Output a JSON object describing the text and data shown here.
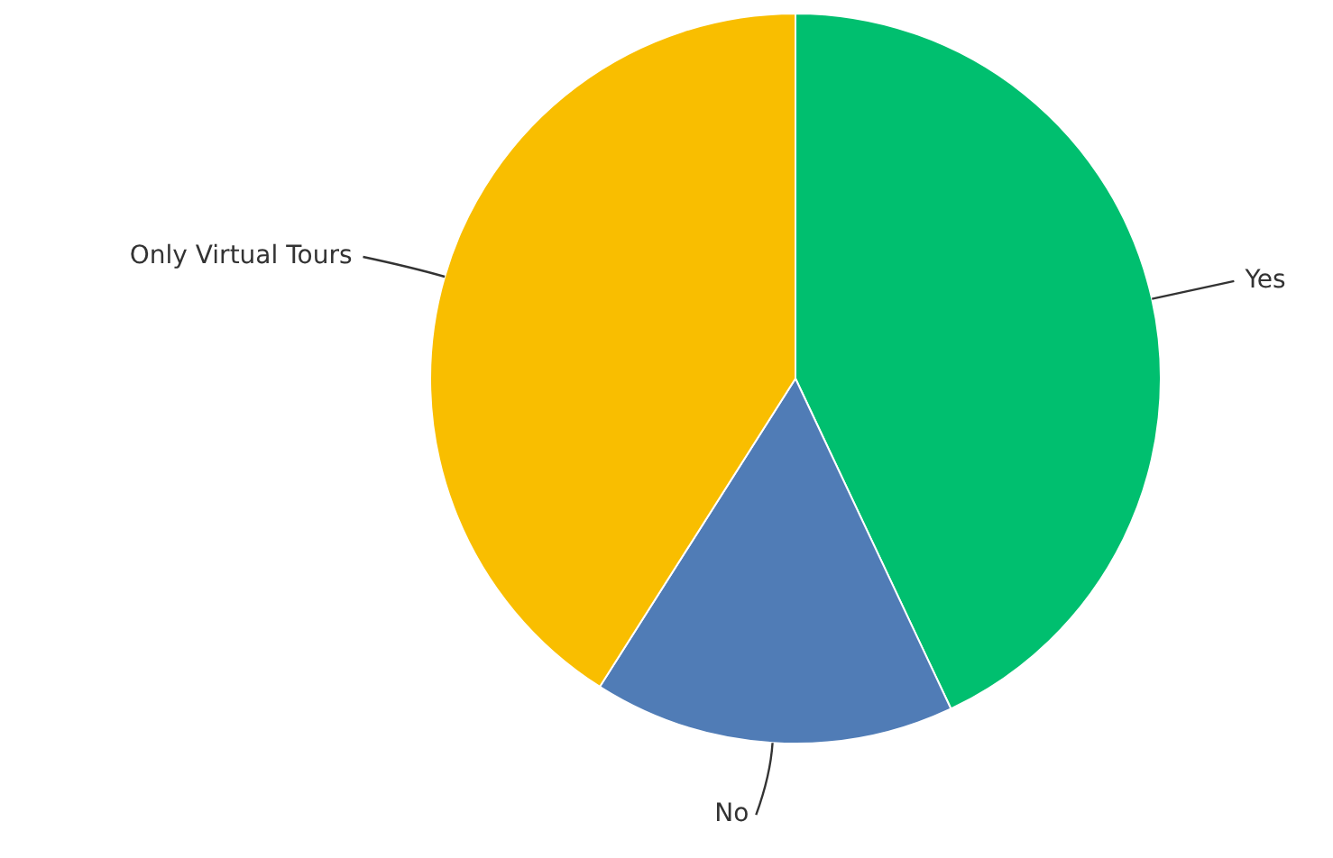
{
  "chart_data": {
    "type": "pie",
    "categories": [
      "Yes",
      "No",
      "Only Virtual Tours"
    ],
    "values": [
      43,
      16,
      41
    ],
    "colors": [
      "#00bf6f",
      "#507cb6",
      "#f9be00"
    ],
    "legend": false
  }
}
